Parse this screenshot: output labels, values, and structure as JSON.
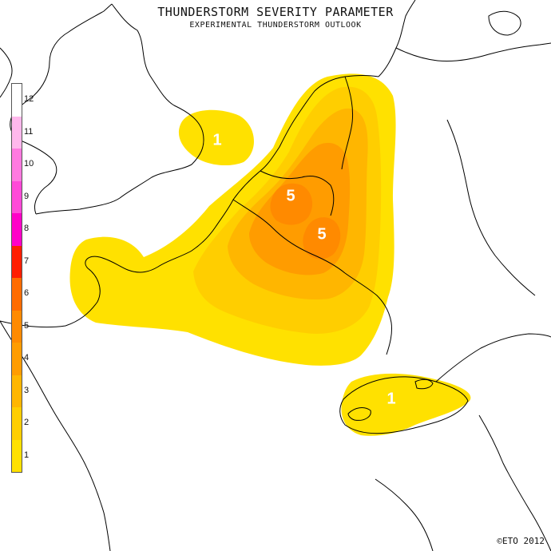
{
  "title": "THUNDERSTORM SEVERITY PARAMETER",
  "subtitle": "EXPERIMENTAL THUNDERSTORM OUTLOOK",
  "copyright": "©ETO 2012",
  "legend": {
    "labels": [
      "1",
      "2",
      "3",
      "4",
      "5",
      "6",
      "7",
      "8",
      "9",
      "10",
      "11",
      "12"
    ],
    "colors": [
      "#ffe100",
      "#ffce00",
      "#ffb600",
      "#ff9c00",
      "#ff8a00",
      "#ff6c00",
      "#ff1e00",
      "#ff00c8",
      "#ff4ad8",
      "#ff7ae0",
      "#ffb8ec",
      "#ffffff"
    ]
  },
  "areas": [
    {
      "label": "1",
      "level": 1
    },
    {
      "label": "5",
      "level": 5
    },
    {
      "label": "5",
      "level": 5
    },
    {
      "label": "1",
      "level": 1
    }
  ],
  "map_colors": {
    "level1": "#ffe100",
    "level2": "#ffce00",
    "level3": "#ffb600",
    "level4": "#ff9c00",
    "level5": "#ff8a00",
    "coastline": "#000000"
  }
}
